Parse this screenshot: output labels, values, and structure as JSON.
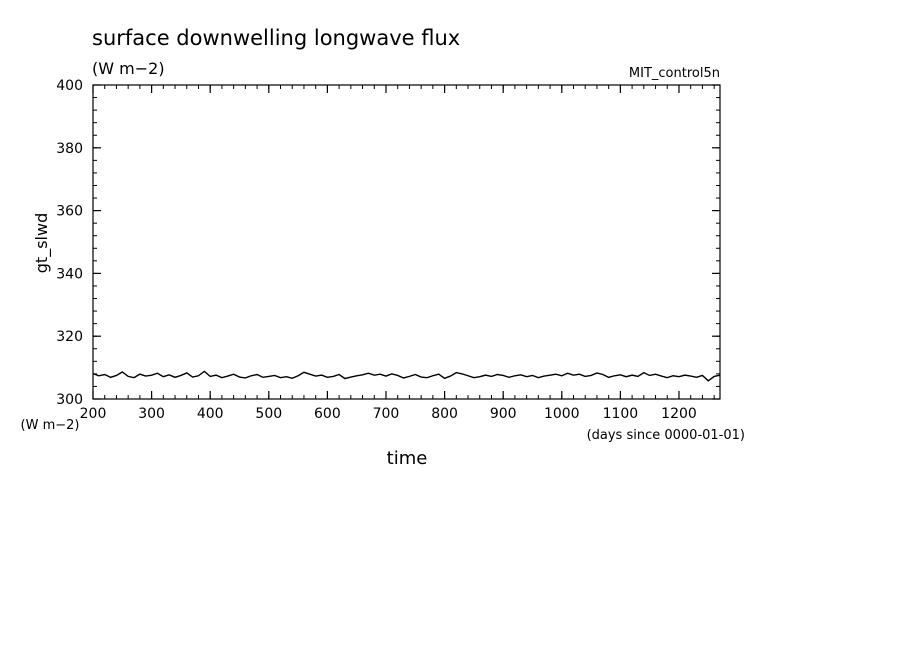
{
  "chart_data": {
    "type": "line",
    "title": "surface downwelling longwave flux",
    "title_units": "(W m−2)",
    "experiment_label": "MIT_control5n",
    "ylabel": "gt_slwd",
    "y_units": "(W m−2)",
    "xlabel": "time",
    "x_units": "(days since 0000-01-01)",
    "xlim": [
      200,
      1270
    ],
    "ylim": [
      300,
      400
    ],
    "xticks": [
      200,
      300,
      400,
      500,
      600,
      700,
      800,
      900,
      1000,
      1100,
      1200
    ],
    "yticks": [
      300,
      320,
      340,
      360,
      380,
      400
    ],
    "x_minor_step": 20,
    "y_minor_step": 4,
    "grid": false,
    "series": [
      {
        "x": [
          200,
          210,
          220,
          230,
          240,
          250,
          260,
          270,
          280,
          290,
          300,
          310,
          320,
          330,
          340,
          350,
          360,
          370,
          380,
          390,
          400,
          410,
          420,
          430,
          440,
          450,
          460,
          470,
          480,
          490,
          500,
          510,
          520,
          530,
          540,
          550,
          560,
          570,
          580,
          590,
          600,
          610,
          620,
          630,
          640,
          650,
          660,
          670,
          680,
          690,
          700,
          710,
          720,
          730,
          740,
          750,
          760,
          770,
          780,
          790,
          800,
          810,
          820,
          830,
          840,
          850,
          860,
          870,
          880,
          890,
          900,
          910,
          920,
          930,
          940,
          950,
          960,
          970,
          980,
          990,
          1000,
          1010,
          1020,
          1030,
          1040,
          1050,
          1060,
          1070,
          1080,
          1090,
          1100,
          1110,
          1120,
          1130,
          1140,
          1150,
          1160,
          1170,
          1180,
          1190,
          1200,
          1210,
          1220,
          1230,
          1240,
          1250,
          1260,
          1270
        ],
        "y": [
          308.1,
          307.4,
          307.8,
          306.9,
          307.5,
          308.6,
          307.2,
          306.8,
          307.9,
          307.3,
          307.6,
          308.2,
          307.1,
          307.7,
          306.9,
          307.5,
          308.3,
          307.0,
          307.4,
          308.8,
          307.2,
          307.6,
          306.8,
          307.3,
          307.9,
          307.0,
          306.7,
          307.4,
          307.8,
          306.9,
          307.2,
          307.5,
          306.8,
          307.1,
          306.6,
          307.4,
          308.5,
          307.9,
          307.3,
          307.6,
          306.9,
          307.2,
          307.8,
          306.5,
          307.0,
          307.4,
          307.7,
          308.2,
          307.6,
          307.9,
          307.3,
          308.0,
          307.5,
          306.7,
          307.2,
          307.8,
          307.0,
          306.8,
          307.4,
          307.9,
          306.6,
          307.3,
          308.4,
          308.0,
          307.4,
          306.8,
          307.1,
          307.6,
          307.2,
          307.8,
          307.5,
          306.9,
          307.4,
          307.7,
          307.1,
          307.5,
          306.8,
          307.3,
          307.6,
          307.9,
          307.4,
          308.2,
          307.6,
          307.9,
          307.2,
          307.5,
          308.3,
          307.8,
          306.9,
          307.4,
          307.7,
          307.1,
          307.6,
          307.2,
          308.4,
          307.5,
          307.9,
          307.3,
          306.8,
          307.4,
          307.1,
          307.6,
          307.3,
          306.9,
          307.5,
          305.8,
          307.2,
          307.6
        ]
      }
    ]
  }
}
